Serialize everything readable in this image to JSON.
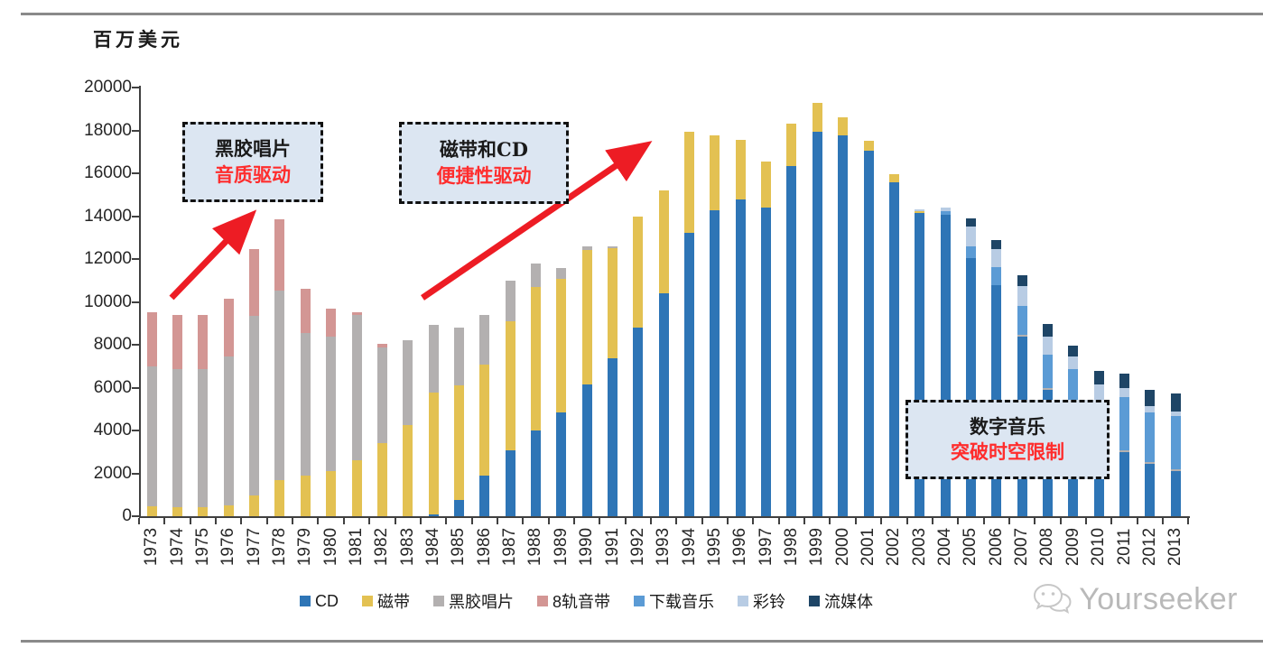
{
  "page": {
    "unit_label": "百万美元",
    "watermark": "Yourseeker"
  },
  "chart_data": {
    "type": "bar",
    "stacked": true,
    "title": "",
    "ylabel": "百万美元",
    "xlabel": "",
    "ylim": [
      0,
      20000
    ],
    "ytick_interval": 2000,
    "yticks": [
      0,
      2000,
      4000,
      6000,
      8000,
      10000,
      12000,
      14000,
      16000,
      18000,
      20000
    ],
    "grid": false,
    "legend_position": "bottom",
    "categories": [
      1973,
      1974,
      1975,
      1976,
      1977,
      1978,
      1979,
      1980,
      1981,
      1982,
      1983,
      1984,
      1985,
      1986,
      1987,
      1988,
      1989,
      1990,
      1991,
      1992,
      1993,
      1994,
      1995,
      1996,
      1997,
      1998,
      1999,
      2000,
      2001,
      2002,
      2003,
      2004,
      2005,
      2006,
      2007,
      2008,
      2009,
      2010,
      2011,
      2012,
      2013
    ],
    "series": [
      {
        "name": "CD",
        "color": "#2E75B6",
        "values": [
          0,
          0,
          0,
          0,
          0,
          0,
          0,
          0,
          0,
          0,
          0,
          100,
          760,
          1880,
          3070,
          3980,
          4845,
          6150,
          7365,
          8800,
          10420,
          13220,
          14270,
          14760,
          14410,
          16340,
          17940,
          17750,
          17050,
          15600,
          14150,
          14050,
          12030,
          10770,
          8400,
          5880,
          4700,
          3350,
          3000,
          2440,
          2100
        ]
      },
      {
        "name": "磁带",
        "color": "#E3C152",
        "values": [
          475,
          405,
          410,
          500,
          965,
          1665,
          1905,
          2090,
          2600,
          3390,
          4255,
          5650,
          5350,
          5210,
          6020,
          6720,
          6235,
          6290,
          5130,
          5200,
          4760,
          4710,
          3510,
          2790,
          2140,
          1960,
          1360,
          850,
          450,
          350,
          100,
          0,
          0,
          0,
          0,
          0,
          0,
          0,
          0,
          0,
          0
        ]
      },
      {
        "name": "黑胶唱片",
        "color": "#B3B0B0",
        "values": [
          6515,
          6445,
          6470,
          6935,
          8400,
          8850,
          6650,
          6270,
          6800,
          4480,
          3945,
          3190,
          2700,
          2310,
          1890,
          1090,
          490,
          150,
          95,
          0,
          0,
          0,
          0,
          0,
          0,
          0,
          0,
          0,
          0,
          0,
          0,
          0,
          0,
          0,
          50,
          100,
          70,
          60,
          90,
          90,
          90
        ]
      },
      {
        "name": "8轨音带",
        "color": "#D39694",
        "values": [
          2540,
          2540,
          2510,
          2730,
          3110,
          3330,
          2045,
          1315,
          135,
          180,
          0,
          0,
          0,
          0,
          0,
          0,
          0,
          0,
          0,
          0,
          0,
          0,
          0,
          0,
          0,
          0,
          0,
          0,
          0,
          0,
          0,
          0,
          0,
          0,
          0,
          0,
          0,
          0,
          0,
          0,
          0
        ]
      },
      {
        "name": "下载音乐",
        "color": "#5B9BD5",
        "values": [
          0,
          0,
          0,
          0,
          0,
          0,
          0,
          0,
          0,
          0,
          0,
          0,
          0,
          0,
          0,
          0,
          0,
          0,
          0,
          0,
          0,
          0,
          0,
          0,
          0,
          0,
          0,
          0,
          0,
          0,
          0,
          200,
          570,
          850,
          1350,
          1550,
          2100,
          1950,
          2450,
          2310,
          2500
        ]
      },
      {
        "name": "彩铃",
        "color": "#B8CCE4",
        "values": [
          0,
          0,
          0,
          0,
          0,
          0,
          0,
          0,
          0,
          0,
          0,
          0,
          0,
          0,
          0,
          0,
          0,
          0,
          0,
          0,
          0,
          0,
          0,
          0,
          0,
          0,
          0,
          0,
          0,
          0,
          50,
          150,
          900,
          830,
          950,
          850,
          600,
          800,
          420,
          280,
          195
        ]
      },
      {
        "name": "流媒体",
        "color": "#1E4566",
        "values": [
          0,
          0,
          0,
          0,
          0,
          0,
          0,
          0,
          0,
          0,
          0,
          0,
          0,
          0,
          0,
          0,
          0,
          0,
          0,
          0,
          0,
          0,
          0,
          0,
          0,
          0,
          0,
          0,
          0,
          0,
          0,
          0,
          380,
          450,
          500,
          590,
          500,
          620,
          700,
          770,
          840
        ]
      }
    ]
  },
  "annotations": [
    {
      "line1": "黑胶唱片",
      "line2": "音质驱动"
    },
    {
      "line1": "磁带和CD",
      "line2": "便捷性驱动"
    },
    {
      "line1": "数字音乐",
      "line2": "突破时空限制"
    }
  ],
  "colors": {
    "annotation_red": "#ff2d2d",
    "arrow_red": "#ed1c24",
    "annotation_box_bg": "#dce6f2",
    "axis": "#404040"
  }
}
